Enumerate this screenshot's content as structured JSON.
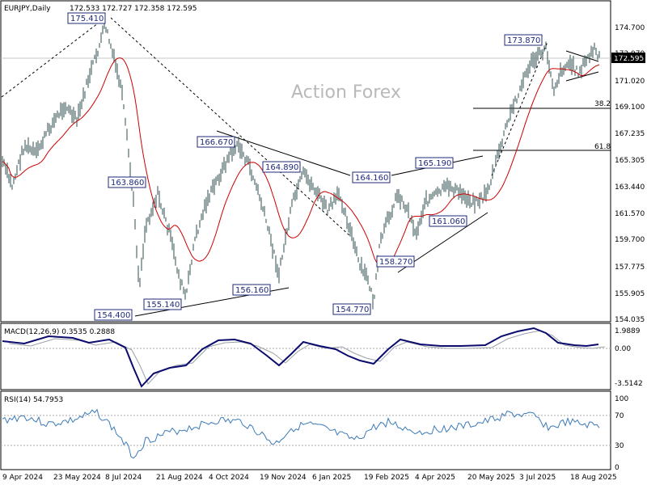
{
  "header": {
    "symbol": "EURJPY,Daily",
    "ohlc": "172.533 172.727 172.358 172.595"
  },
  "watermark": "Action Forex",
  "price_panel": {
    "current_price": "172.595",
    "y_ticks": [
      "174.700",
      "172.970",
      "171.020",
      "169.100",
      "167.235",
      "165.305",
      "163.440",
      "161.570",
      "159.700",
      "157.775",
      "155.905",
      "154.035"
    ],
    "fib_labels": [
      "38.2",
      "61.8"
    ],
    "annotations": [
      "175.410",
      "163.860",
      "154.400",
      "155.140",
      "166.670",
      "164.890",
      "156.160",
      "154.770",
      "164.160",
      "158.270",
      "165.190",
      "161.060",
      "173.870"
    ]
  },
  "macd_panel": {
    "title": "MACD(12,26,9) 0.3535 0.2888",
    "y_ticks": [
      "1.9889",
      "0.00",
      "-3.5142"
    ]
  },
  "rsi_panel": {
    "title": "RSI(14) 54.7953",
    "y_ticks": [
      "100",
      "70",
      "30",
      "0"
    ]
  },
  "x_ticks": [
    "9 Apr 2024",
    "23 May 2024",
    "8 Jul 2024",
    "21 Aug 2024",
    "4 Oct 2024",
    "19 Nov 2024",
    "6 Jan 2025",
    "19 Feb 2025",
    "4 Apr 2025",
    "20 May 2025",
    "3 Jul 2025",
    "18 Aug 2025"
  ],
  "colors": {
    "price": "#2f4f4f",
    "ma": "#cc0000",
    "macd": "#0b0b6e",
    "signal": "#9aa0a6",
    "rsi": "#3a7ab8",
    "label": "#1f2a7a"
  },
  "chart_data": {
    "type": "line",
    "title": "EURJPY,Daily",
    "series": [
      {
        "x": [
          "9 Apr 2024",
          "23 May 2024",
          "8 Jul 2024",
          "21 Aug 2024",
          "4 Oct 2024",
          "19 Nov 2024",
          "6 Jan 2025",
          "19 Feb 2025",
          "4 Apr 2025",
          "20 May 2025",
          "3 Jul 2025",
          "18 Aug 2025"
        ],
        "values": [
          165.3,
          168.5,
          175.4,
          155.1,
          166.7,
          160.5,
          164.8,
          157.5,
          161.5,
          163.2,
          171.5,
          172.6
        ]
      }
    ],
    "ylim": [
      154.035,
      176.0
    ],
    "key_levels": [
      175.41,
      163.86,
      154.4,
      155.14,
      166.67,
      164.89,
      156.16,
      154.77,
      164.16,
      158.27,
      165.19,
      161.06,
      173.87
    ],
    "fib_levels": {
      "38.2": 168.75,
      "61.8": 165.8
    },
    "macd": {
      "macd": 0.3535,
      "signal": 0.2888,
      "ylim": [
        -3.5142,
        1.9889
      ]
    },
    "rsi": {
      "value": 54.7953,
      "levels": [
        70,
        30
      ],
      "ylim": [
        0,
        100
      ]
    }
  }
}
